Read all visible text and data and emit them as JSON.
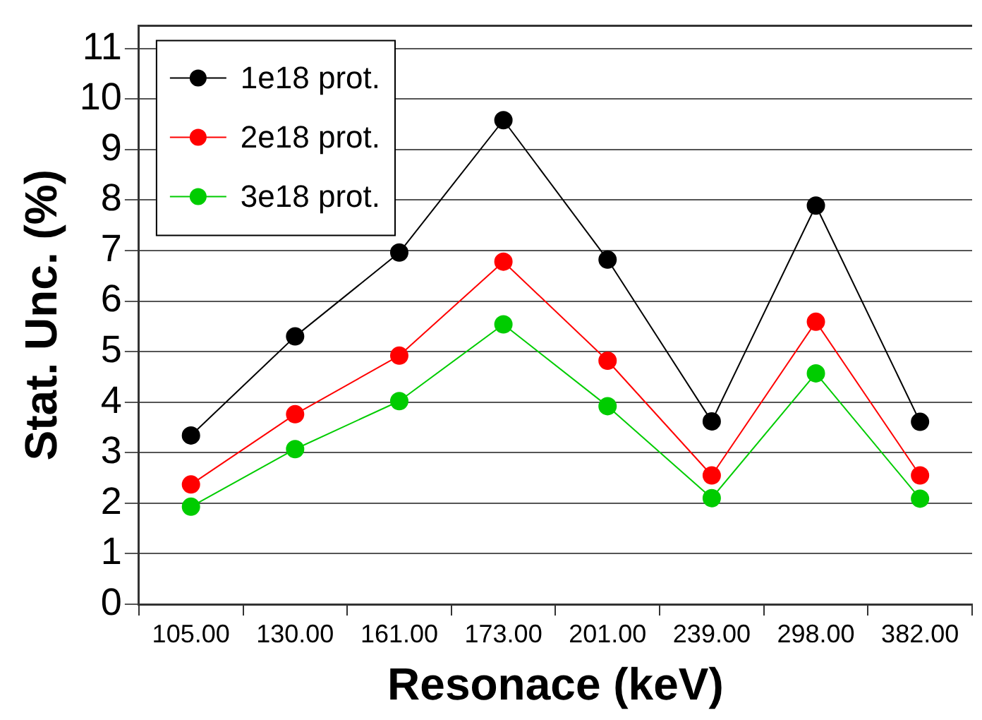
{
  "chart_data": {
    "type": "line",
    "xlabel": "Resonace (keV)",
    "ylabel": "Stat. Unc. (%)",
    "categories": [
      "105.00",
      "130.00",
      "161.00",
      "173.00",
      "201.00",
      "239.00",
      "298.00",
      "382.00"
    ],
    "series": [
      {
        "name": "1e18 prot.",
        "color": "#000000",
        "values": [
          3.34,
          5.3,
          6.96,
          9.58,
          6.82,
          3.62,
          7.89,
          3.61
        ]
      },
      {
        "name": "2e18 prot.",
        "color": "#ff0000",
        "values": [
          2.37,
          3.76,
          4.92,
          6.78,
          4.82,
          2.55,
          5.59,
          2.55
        ]
      },
      {
        "name": "3e18 prot.",
        "color": "#00cc00",
        "values": [
          1.93,
          3.07,
          4.02,
          5.54,
          3.92,
          2.1,
          4.57,
          2.09
        ]
      }
    ],
    "ylim": [
      0,
      11.45
    ],
    "yticks": [
      0,
      1,
      2,
      3,
      4,
      5,
      6,
      7,
      8,
      9,
      10,
      11
    ],
    "grid": "y",
    "legend": "top left",
    "marker": "circle",
    "line_style": "solid"
  }
}
